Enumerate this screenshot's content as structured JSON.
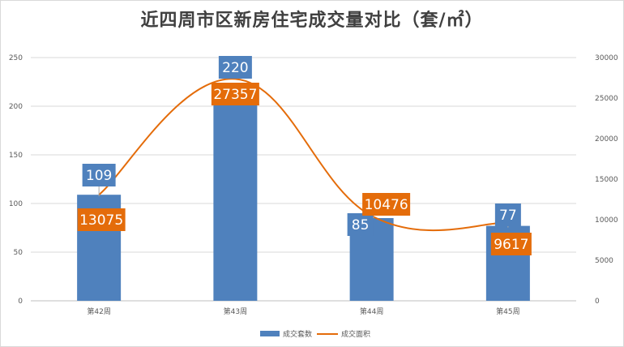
{
  "chart_data": {
    "type": "bar",
    "title": "近四周市区新房住宅成交量对比（套/㎡）",
    "categories": [
      "第42周",
      "第43周",
      "第44周",
      "第45周"
    ],
    "series": [
      {
        "name": "成交套数",
        "type": "bar",
        "axis": "left",
        "values": [
          109,
          220,
          85,
          77
        ],
        "color": "#4f81bd"
      },
      {
        "name": "成交面积",
        "type": "line",
        "axis": "right",
        "values": [
          13075,
          27357,
          10476,
          9617
        ],
        "color": "#e46c0a"
      }
    ],
    "y_left": {
      "min": 0,
      "max": 250,
      "ticks": [
        "0",
        "50",
        "100",
        "150",
        "200",
        "250"
      ]
    },
    "y_right": {
      "min": 0,
      "max": 30000,
      "ticks": [
        "0",
        "5000",
        "10000",
        "15000",
        "20000",
        "25000",
        "30000"
      ]
    },
    "grid": true,
    "legend_position": "bottom"
  }
}
